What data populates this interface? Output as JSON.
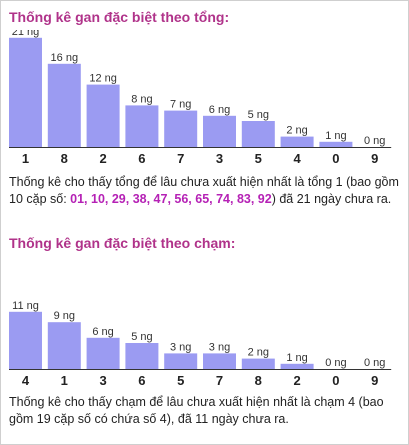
{
  "chart_data": [
    {
      "type": "bar",
      "title": "Thống kê gan đặc biệt theo tổng:",
      "categories": [
        "1",
        "8",
        "2",
        "6",
        "7",
        "3",
        "5",
        "4",
        "0",
        "9"
      ],
      "values": [
        21,
        16,
        12,
        8,
        7,
        6,
        5,
        2,
        1,
        0
      ],
      "unit": "ng",
      "bar_color": "#9b9bf2"
    },
    {
      "type": "bar",
      "title": "Thống kê gan đặc biệt theo chạm:",
      "categories": [
        "4",
        "1",
        "3",
        "6",
        "5",
        "7",
        "8",
        "2",
        "0",
        "9"
      ],
      "values": [
        11,
        9,
        6,
        5,
        3,
        3,
        2,
        1,
        0,
        0
      ],
      "unit": "ng",
      "bar_color": "#9b9bf2"
    }
  ],
  "text": {
    "desc1_pre": "Thống kê cho thấy tổng để lâu chưa xuất hiện nhất là tổng 1 (bao gồm 10 cặp số: ",
    "desc1_nums": "01, 10, 29, 38, 47, 56, 65, 74, 83, 92",
    "desc1_post": ") đã 21 ngày chưa ra.",
    "desc2": "Thống kê cho thấy chạm để lâu chưa xuất hiện nhất là chạm 4 (bao gồm 19 cặp số có chứa số 4), đã 11 ngày chưa ra."
  },
  "colors": {
    "title": "#b0338a",
    "highlight": "#b521b5"
  }
}
